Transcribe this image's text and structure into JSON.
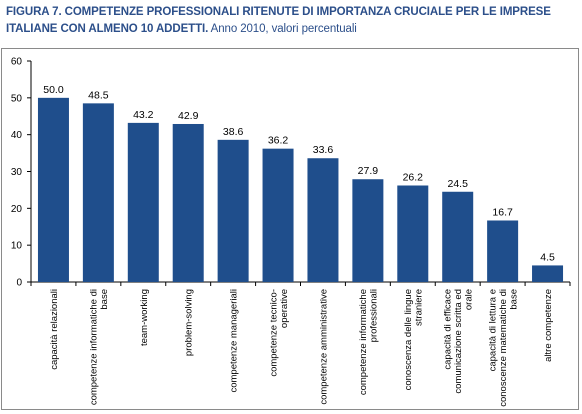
{
  "header": {
    "title_bold": "FIGURA 7. COMPETENZE PROFESSIONALI RITENUTE DI IMPORTANZA CRUCIALE PER LE IMPRESE ITALIANE CON ALMENO 10 ADDETTI.",
    "title_rest": " Anno 2010, valori percentuali"
  },
  "colors": {
    "bar": "#1f4e8c",
    "axis": "#000000",
    "frame": "#8a8a8a",
    "title": "#2c4f8a"
  },
  "chart_data": {
    "type": "bar",
    "title": "FIGURA 7. COMPETENZE PROFESSIONALI RITENUTE DI IMPORTANZA CRUCIALE PER LE IMPRESE ITALIANE CON ALMENO 10 ADDETTI. Anno 2010, valori percentuali",
    "categories": [
      [
        "capacità relazionali"
      ],
      [
        "competenze informatiche di",
        "base"
      ],
      [
        "team-working"
      ],
      [
        "problem-solving"
      ],
      [
        "competenze manageriali"
      ],
      [
        "competenze tecnico-",
        "operative"
      ],
      [
        "competenze amministrative"
      ],
      [
        "competenze informatiche",
        "professionali"
      ],
      [
        "conoscenza delle lingue",
        "straniere"
      ],
      [
        "capacità di efficace",
        "comunicazione scritta ed",
        "orale"
      ],
      [
        "capacità di lettura e",
        "conoscenze matematiche di",
        "base"
      ],
      [
        "altre competenze"
      ]
    ],
    "values": [
      50.0,
      48.5,
      43.2,
      42.9,
      38.6,
      36.2,
      33.6,
      27.9,
      26.2,
      24.5,
      16.7,
      4.5
    ],
    "value_labels": [
      "50.0",
      "48.5",
      "43.2",
      "42.9",
      "38.6",
      "36.2",
      "33.6",
      "27.9",
      "26.2",
      "24.5",
      "16.7",
      "4.5"
    ],
    "y_ticks": [
      "0",
      "10",
      "20",
      "30",
      "40",
      "50",
      "60"
    ],
    "ylim": [
      0,
      60
    ],
    "grid": false,
    "legend": "none"
  }
}
